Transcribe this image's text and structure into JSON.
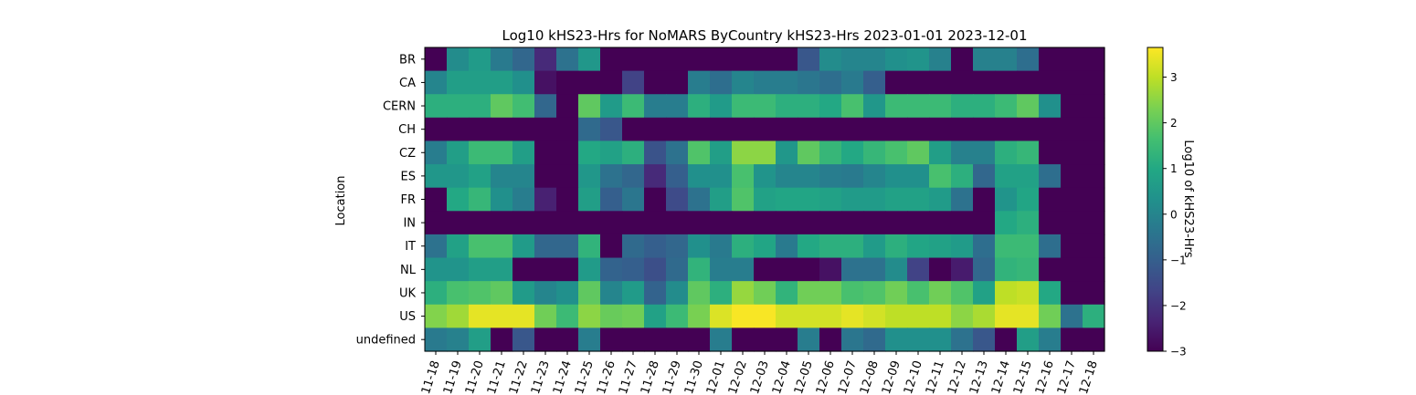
{
  "chart_data": {
    "type": "heatmap",
    "title": "Log10 kHS23-Hrs for NoMARS ByCountry kHS23-Hrs 2023-01-01 2023-12-01",
    "xlabel": "",
    "ylabel": "Location",
    "colorbar_label": "Log10 of kHS23-Hrs",
    "colormap": "viridis",
    "vmin": -3,
    "vmax": 3.65,
    "colorbar_ticks": [
      -3,
      -2,
      -1,
      0,
      1,
      2,
      3
    ],
    "colorbar_tick_labels": [
      "−3",
      "−2",
      "−1",
      "0",
      "1",
      "2",
      "3"
    ],
    "x_tick_labels_visible": [
      "11-18",
      "11-19",
      "11-20",
      "11-21",
      "11-22",
      "11-23",
      "11-24",
      "11-25",
      "11-26",
      "11-27",
      "11-28",
      "11-29",
      "11-30",
      "12-01",
      "12-02",
      "12-03",
      "12-04",
      "12-05",
      "12-06",
      "12-07",
      "12-08",
      "12-09",
      "12-10",
      "12-11",
      "12-12",
      "12-13",
      "12-14",
      "12-15",
      "12-16",
      "12-17",
      "12-18"
    ],
    "rows": [
      "BR",
      "CA",
      "CERN",
      "CH",
      "CZ",
      "ES",
      "FR",
      "IN",
      "IT",
      "NL",
      "UK",
      "US",
      "undefined"
    ],
    "values": [
      [
        -3,
        0.2,
        0.6,
        -0.3,
        -0.8,
        -2.2,
        -0.5,
        0.5,
        -3,
        -3,
        -3,
        -3,
        -3,
        -3,
        -3,
        -3,
        -3,
        -1.2,
        0.2,
        0.0,
        0.0,
        0.3,
        0.4,
        -0.1,
        -3,
        -0.1,
        -0.1,
        -0.6,
        -3,
        -3,
        -3
      ],
      [
        0.0,
        0.7,
        0.7,
        0.7,
        0.3,
        -2.7,
        -3,
        -3,
        -3,
        -1.7,
        -3,
        -3,
        -0.2,
        -0.6,
        0.0,
        -0.2,
        -0.2,
        -0.4,
        -0.6,
        -0.3,
        -1.0,
        -3,
        -3,
        -3,
        -3,
        -3,
        -3,
        -3,
        -3,
        -3,
        -3
      ],
      [
        1.2,
        1.2,
        1.2,
        2.0,
        1.6,
        -0.8,
        -3,
        2.0,
        0.6,
        1.5,
        -0.2,
        -0.2,
        1.2,
        0.6,
        1.5,
        1.5,
        1.2,
        1.2,
        1.0,
        1.7,
        0.5,
        1.5,
        1.5,
        1.5,
        1.2,
        1.2,
        1.5,
        2.0,
        0.3,
        -3,
        -3
      ],
      [
        -3,
        -3,
        -3,
        -3,
        -3,
        -3,
        -3,
        -0.7,
        -1.2,
        -3,
        -3,
        -3,
        -3,
        -3,
        -3,
        -3,
        -3,
        -3,
        -3,
        -3,
        -3,
        -3,
        -3,
        -3,
        -3,
        -3,
        -3,
        -3,
        -3,
        -3,
        -3
      ],
      [
        -0.2,
        0.7,
        1.5,
        1.5,
        0.7,
        -3,
        -3,
        1.0,
        0.8,
        1.2,
        -1.3,
        -0.5,
        1.8,
        0.7,
        2.5,
        2.5,
        0.5,
        2.0,
        1.4,
        1.0,
        1.4,
        1.7,
        2.0,
        0.7,
        -0.1,
        -0.1,
        1.2,
        1.4,
        -3,
        -3,
        -3
      ],
      [
        0.5,
        0.5,
        0.8,
        0.0,
        0.0,
        -3,
        -3,
        0.5,
        -0.5,
        -0.8,
        -2.2,
        -1.0,
        0.3,
        0.3,
        1.7,
        0.4,
        0.0,
        0.0,
        -0.2,
        -0.3,
        0.0,
        0.3,
        0.3,
        1.7,
        1.2,
        -0.8,
        0.8,
        0.8,
        -0.6,
        -3,
        -3
      ],
      [
        -3,
        1.0,
        1.4,
        0.3,
        -0.2,
        -2.4,
        -3,
        0.7,
        -1.0,
        -0.4,
        -3,
        -1.5,
        -0.5,
        0.7,
        1.8,
        0.8,
        0.9,
        0.9,
        0.8,
        0.6,
        0.6,
        0.8,
        0.8,
        0.6,
        -0.5,
        -3,
        0.4,
        0.9,
        -3,
        -3,
        -3
      ],
      [
        -3,
        -3,
        -3,
        -3,
        -3,
        -3,
        -3,
        -3,
        -3,
        -3,
        -3,
        -3,
        -3,
        -3,
        -3,
        -3,
        -3,
        -3,
        -3,
        -3,
        -3,
        -3,
        -3,
        -3,
        -3,
        -3,
        1.0,
        1.2,
        -3,
        -3,
        -3
      ],
      [
        -0.5,
        0.8,
        1.7,
        1.7,
        0.6,
        -0.8,
        -0.8,
        1.3,
        -3,
        -0.7,
        -1.0,
        -0.8,
        0.3,
        -0.3,
        1.2,
        0.9,
        -0.3,
        1.0,
        1.2,
        1.2,
        0.6,
        1.2,
        0.9,
        0.8,
        0.6,
        -0.6,
        1.5,
        1.5,
        -0.6,
        -3,
        -3
      ],
      [
        0.4,
        0.4,
        0.7,
        0.7,
        -3,
        -3,
        -3,
        0.6,
        -0.9,
        -1.0,
        -1.4,
        -0.7,
        1.3,
        -0.2,
        -0.2,
        -3,
        -3,
        -3,
        -2.7,
        -0.5,
        -0.5,
        0.2,
        -1.7,
        -3,
        -2.5,
        -0.8,
        1.3,
        1.4,
        -3,
        -3,
        -3
      ],
      [
        1.2,
        1.7,
        1.8,
        2.0,
        0.6,
        0.0,
        0.3,
        2.0,
        0.0,
        0.6,
        -0.9,
        0.2,
        2.0,
        1.2,
        2.6,
        2.2,
        1.3,
        2.2,
        2.2,
        1.7,
        1.8,
        2.2,
        1.7,
        2.2,
        1.8,
        0.8,
        3.0,
        3.1,
        1.0,
        -3,
        -3
      ],
      [
        2.4,
        2.7,
        3.4,
        3.4,
        3.4,
        2.2,
        1.5,
        2.5,
        2.1,
        2.2,
        0.8,
        1.5,
        2.3,
        3.3,
        3.6,
        3.6,
        3.2,
        3.2,
        3.2,
        3.4,
        3.2,
        3.0,
        3.0,
        3.0,
        2.5,
        2.8,
        3.4,
        3.4,
        2.2,
        -0.5,
        1.2
      ],
      [
        -0.3,
        -0.1,
        0.7,
        -3,
        -1.2,
        -3,
        -3,
        -0.2,
        -3,
        -3,
        -3,
        -3,
        -3,
        -0.2,
        -3,
        -3,
        -3,
        -0.2,
        -3,
        -0.4,
        -0.7,
        0.3,
        0.3,
        0.3,
        -0.5,
        -1.2,
        -3,
        0.7,
        -0.2,
        -3,
        -3
      ]
    ]
  }
}
